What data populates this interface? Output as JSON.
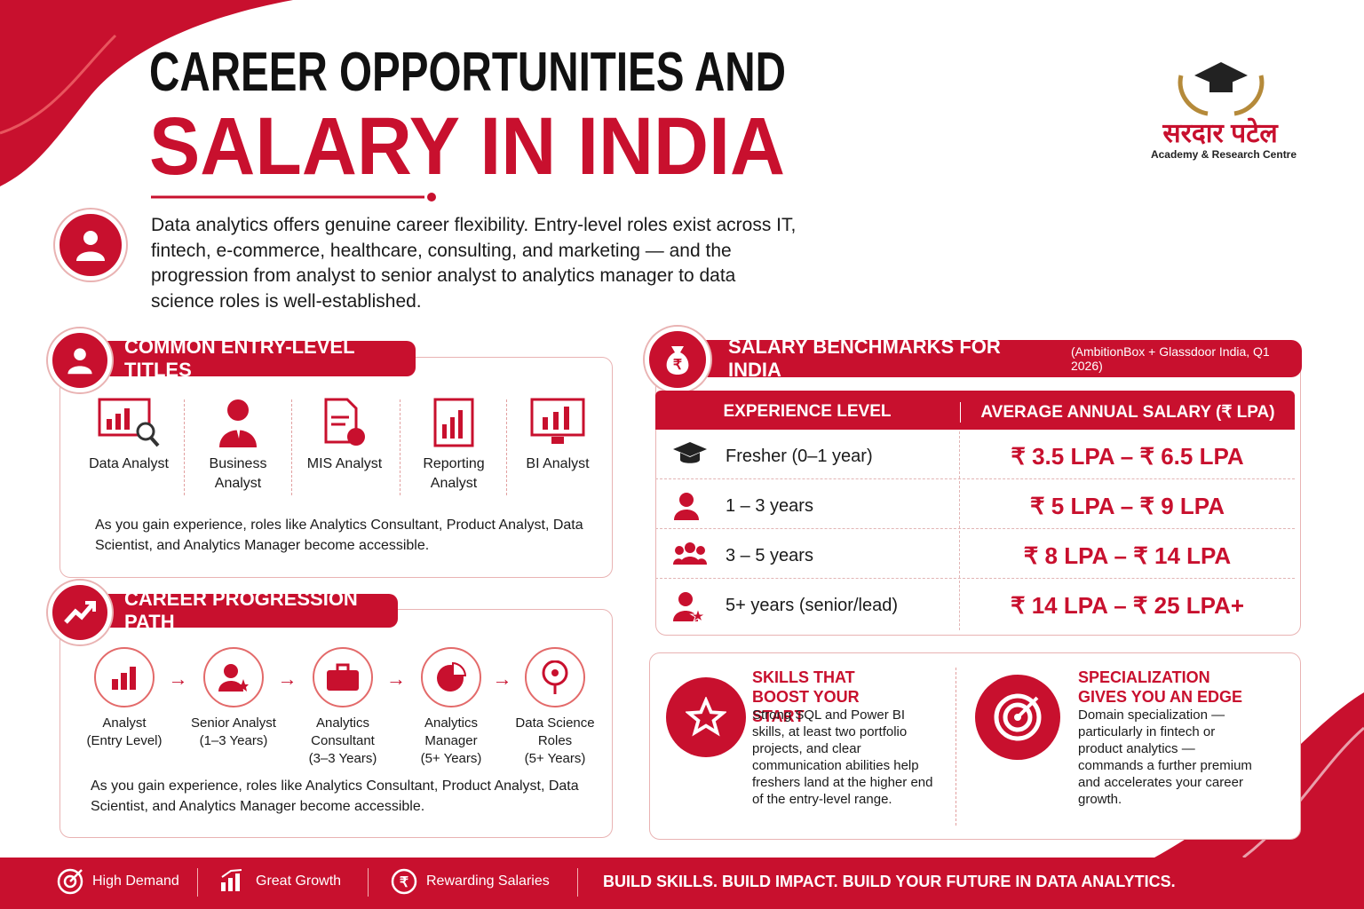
{
  "header": {
    "title_line1": "CAREER OPPORTUNITIES AND",
    "title_line2": "SALARY IN INDIA",
    "intro": "Data analytics offers genuine career flexibility. Entry-level roles exist across IT, fintech, e-commerce, healthcare, consulting, and marketing — and the progression from analyst to senior analyst to analytics manager to data science roles is well-established."
  },
  "logo": {
    "name": "सरदार पटेल",
    "subtitle": "Academy & Research Centre"
  },
  "entry_titles": {
    "heading": "COMMON ENTRY-LEVEL TITLES",
    "items": [
      "Data Analyst",
      "Business Analyst",
      "MIS Analyst",
      "Reporting Analyst",
      "BI Analyst"
    ],
    "note": "As you gain experience, roles like Analytics Consultant, Product Analyst, Data Scientist, and Analytics Manager become accessible."
  },
  "progression": {
    "heading": "CAREER PROGRESSION PATH",
    "steps": [
      {
        "title": "Analyst",
        "detail": "(Entry Level)"
      },
      {
        "title": "Senior Analyst",
        "detail": "(1–3 Years)"
      },
      {
        "title": "Analytics Consultant",
        "detail": "(3–3 Years)"
      },
      {
        "title": "Analytics Manager",
        "detail": "(5+ Years)"
      },
      {
        "title": "Data Science Roles",
        "detail": "(5+ Years)"
      }
    ],
    "note": "As you gain experience, roles like Analytics Consultant, Product Analyst, Data Scientist, and Analytics Manager become accessible."
  },
  "salary": {
    "heading": "SALARY BENCHMARKS FOR INDIA",
    "source": "(AmbitionBox + Glassdoor India, Q1 2026)",
    "columns": [
      "EXPERIENCE LEVEL",
      "AVERAGE ANNUAL SALARY (₹ LPA)"
    ],
    "rows": [
      {
        "level": "Fresher (0–1 year)",
        "salary": "₹ 3.5 LPA – ₹ 6.5 LPA"
      },
      {
        "level": "1 – 3 years",
        "salary": "₹ 5 LPA – ₹ 9 LPA"
      },
      {
        "level": "3 – 5 years",
        "salary": "₹ 8 LPA – ₹ 14 LPA"
      },
      {
        "level": "5+ years (senior/lead)",
        "salary": "₹ 14 LPA – ₹ 25 LPA+"
      }
    ]
  },
  "tips": [
    {
      "title": "SKILLS THAT BOOST YOUR START",
      "text": "Strong SQL and Power BI skills, at least two portfolio projects, and clear communication abilities help freshers land at the higher end of the entry-level range."
    },
    {
      "title": "SPECIALIZATION GIVES YOU AN EDGE",
      "text": "Domain specialization — particularly in fintech or product analytics — commands a further premium and accelerates your career growth."
    }
  ],
  "footer": {
    "items": [
      "High Demand",
      "Great Growth",
      "Rewarding Salaries"
    ],
    "tagline": "BUILD SKILLS. BUILD IMPACT. BUILD YOUR FUTURE IN DATA ANALYTICS."
  }
}
